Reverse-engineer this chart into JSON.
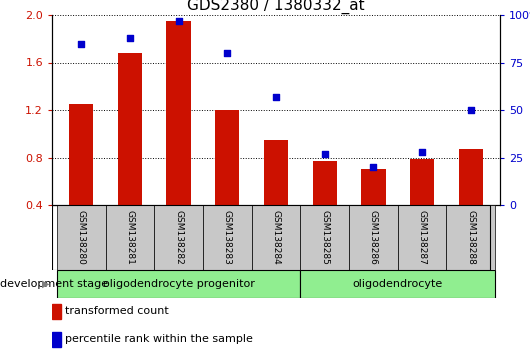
{
  "title": "GDS2380 / 1380332_at",
  "samples": [
    "GSM138280",
    "GSM138281",
    "GSM138282",
    "GSM138283",
    "GSM138284",
    "GSM138285",
    "GSM138286",
    "GSM138287",
    "GSM138288"
  ],
  "transformed_count": [
    1.25,
    1.68,
    1.95,
    1.2,
    0.95,
    0.77,
    0.7,
    0.79,
    0.87
  ],
  "percentile_rank": [
    85,
    88,
    97,
    80,
    57,
    27,
    20,
    28,
    50
  ],
  "ylim_left": [
    0.4,
    2.0
  ],
  "ylim_right": [
    0,
    100
  ],
  "yticks_left": [
    0.4,
    0.8,
    1.2,
    1.6,
    2.0
  ],
  "yticks_right": [
    0,
    25,
    50,
    75,
    100
  ],
  "bar_color": "#cc1100",
  "dot_color": "#0000cc",
  "groups": [
    {
      "label": "oligodendrocyte progenitor",
      "start": 0,
      "end": 5,
      "color": "#90ee90"
    },
    {
      "label": "oligodendrocyte",
      "start": 5,
      "end": 9,
      "color": "#90ee90"
    }
  ],
  "sample_box_color": "#c8c8c8",
  "development_stage_label": "development stage",
  "legend_bar_label": "transformed count",
  "legend_dot_label": "percentile rank within the sample",
  "title_fontsize": 11,
  "tick_label_fontsize": 8,
  "sample_fontsize": 6.5,
  "group_fontsize": 8,
  "legend_fontsize": 8,
  "dev_stage_fontsize": 8
}
